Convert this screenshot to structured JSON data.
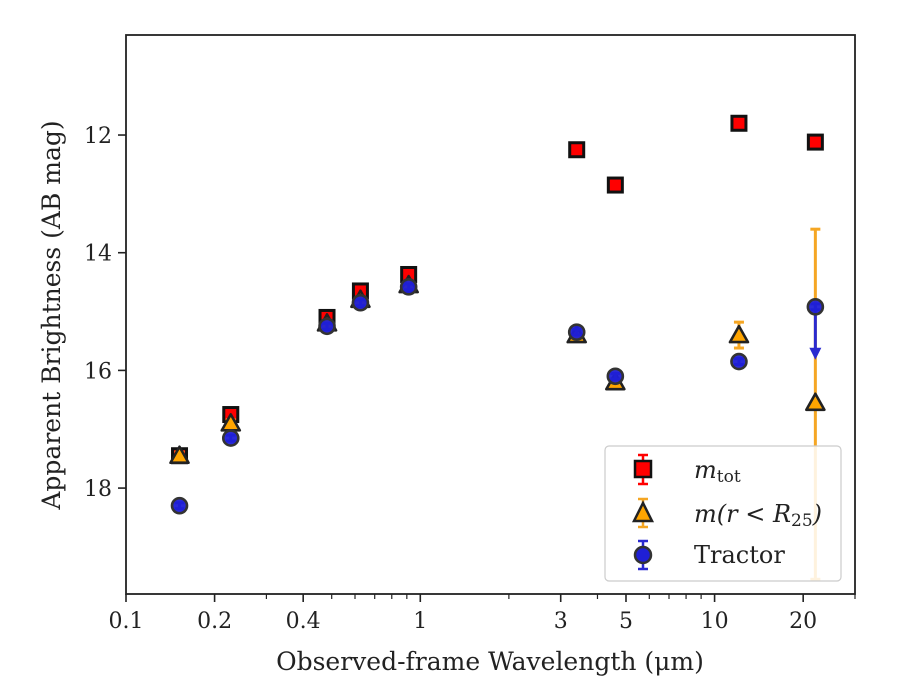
{
  "chart_data": {
    "type": "scatter",
    "title": "",
    "xlabel": "Observed-frame Wavelength (μm)",
    "ylabel": "Apparent Brightness (AB mag)",
    "xscale": "log",
    "xlim": [
      0.1,
      30
    ],
    "ylim": [
      19.8,
      10.3
    ],
    "y_inverted": true,
    "x_ticks": [
      {
        "value": 0.1,
        "label": "0.1"
      },
      {
        "value": 0.2,
        "label": "0.2"
      },
      {
        "value": 0.4,
        "label": "0.4"
      },
      {
        "value": 1,
        "label": "1"
      },
      {
        "value": 3,
        "label": "3"
      },
      {
        "value": 5,
        "label": "5"
      },
      {
        "value": 10,
        "label": "10"
      },
      {
        "value": 20,
        "label": "20"
      }
    ],
    "y_ticks": [
      {
        "value": 12,
        "label": "12"
      },
      {
        "value": 14,
        "label": "14"
      },
      {
        "value": 16,
        "label": "16"
      },
      {
        "value": 18,
        "label": "18"
      }
    ],
    "legend_position": "bottom-right",
    "legend_labels": {
      "mtot_main": "m",
      "mtot_sub": "tot",
      "mr_main": "m(r < R",
      "mr_sub": "25",
      "mr_close": ")",
      "tractor": "Tractor"
    },
    "series": [
      {
        "marker": "square",
        "color": "#ff0000",
        "edge": "#111111",
        "errcolor": "#ff0000",
        "points": [
          {
            "x": 0.152,
            "y": 17.45,
            "err": 0.08
          },
          {
            "x": 0.227,
            "y": 16.75,
            "err": 0.06
          },
          {
            "x": 0.482,
            "y": 15.1,
            "err": 0.05
          },
          {
            "x": 0.626,
            "y": 14.65,
            "err": 0.05
          },
          {
            "x": 0.913,
            "y": 14.37,
            "err": 0.05
          },
          {
            "x": 3.4,
            "y": 12.25,
            "err": 0.04
          },
          {
            "x": 4.6,
            "y": 12.85,
            "err": 0.04
          },
          {
            "x": 12.1,
            "y": 11.8,
            "err": 0.04
          },
          {
            "x": 22.0,
            "y": 12.12,
            "err": 0.04
          }
        ]
      },
      {
        "marker": "triangle",
        "color": "#ffa500",
        "edge": "#222222",
        "errcolor": "#f5a623",
        "points": [
          {
            "x": 0.152,
            "y": 17.45,
            "err": 0.06
          },
          {
            "x": 0.227,
            "y": 16.9,
            "err": 0.06
          },
          {
            "x": 0.482,
            "y": 15.2,
            "err": 0.05
          },
          {
            "x": 0.626,
            "y": 14.8,
            "err": 0.05
          },
          {
            "x": 0.913,
            "y": 14.55,
            "err": 0.05
          },
          {
            "x": 3.4,
            "y": 15.4,
            "err": 0.05
          },
          {
            "x": 4.6,
            "y": 16.2,
            "err": 0.06
          },
          {
            "x": 12.1,
            "y": 15.4,
            "err": 0.22
          },
          {
            "x": 22.0,
            "y": 16.55,
            "err_low": 2.95,
            "err_high": 3.0
          }
        ]
      },
      {
        "marker": "circle",
        "color": "#1f1fd6",
        "edge": "#333333",
        "errcolor": "#2a2ad0",
        "points": [
          {
            "x": 0.152,
            "y": 18.3,
            "err": 0.05
          },
          {
            "x": 0.227,
            "y": 17.15,
            "err": 0.05
          },
          {
            "x": 0.482,
            "y": 15.25,
            "err": 0.05
          },
          {
            "x": 0.626,
            "y": 14.85,
            "err": 0.05
          },
          {
            "x": 0.913,
            "y": 14.58,
            "err": 0.05
          },
          {
            "x": 3.4,
            "y": 15.35,
            "err": 0.05
          },
          {
            "x": 4.6,
            "y": 16.1,
            "err": 0.05
          },
          {
            "x": 12.1,
            "y": 15.85,
            "err": 0.05
          },
          {
            "x": 22.0,
            "y": 14.92,
            "err": 0.05,
            "upper_limit_to": 15.75
          }
        ]
      }
    ]
  }
}
